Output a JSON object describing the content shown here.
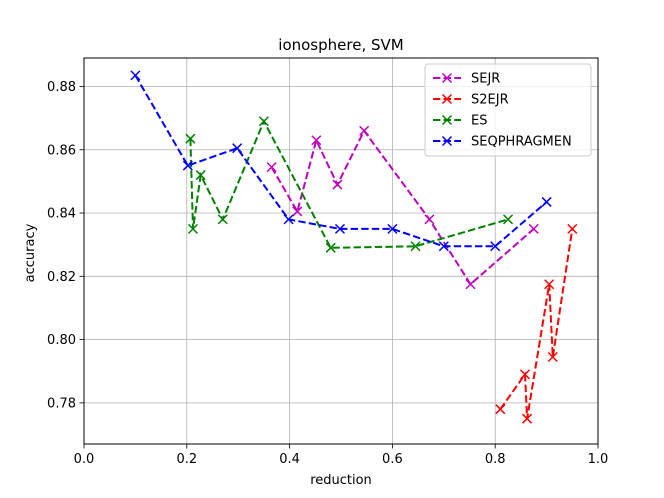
{
  "chart_data": {
    "type": "line",
    "title": "ionosphere, SVM",
    "xlabel": "reduction",
    "ylabel": "accuracy",
    "xlim": [
      0.0,
      1.0
    ],
    "ylim": [
      0.767,
      0.889
    ],
    "xticks": [
      0.0,
      0.2,
      0.4,
      0.6,
      0.8,
      1.0
    ],
    "xtick_labels": [
      "0.0",
      "0.2",
      "0.4",
      "0.6",
      "0.8",
      "1.0"
    ],
    "yticks": [
      0.78,
      0.8,
      0.82,
      0.84,
      0.86,
      0.88
    ],
    "ytick_labels": [
      "0.78",
      "0.80",
      "0.82",
      "0.84",
      "0.86",
      "0.88"
    ],
    "grid": true,
    "legend_position": "top-right",
    "series": [
      {
        "name": "SEJR",
        "color": "#bf00bf",
        "marker": "x",
        "linestyle": "dashed",
        "x": [
          0.365,
          0.415,
          0.452,
          0.493,
          0.545,
          0.672,
          0.752,
          0.875
        ],
        "y": [
          0.8545,
          0.8405,
          0.863,
          0.849,
          0.866,
          0.838,
          0.8175,
          0.835
        ]
      },
      {
        "name": "S2EJR",
        "color": "#ff0000",
        "marker": "x",
        "linestyle": "dashed",
        "x": [
          0.81,
          0.858,
          0.862,
          0.905,
          0.912,
          0.95
        ],
        "y": [
          0.778,
          0.789,
          0.775,
          0.8175,
          0.7945,
          0.835
        ]
      },
      {
        "name": "ES",
        "color": "#008000",
        "marker": "x",
        "linestyle": "dashed",
        "x": [
          0.207,
          0.212,
          0.227,
          0.27,
          0.35,
          0.48,
          0.645,
          0.825
        ],
        "y": [
          0.8635,
          0.835,
          0.852,
          0.838,
          0.869,
          0.829,
          0.8295,
          0.838
        ]
      },
      {
        "name": "SEQPHRAGMEN",
        "color": "#0000ff",
        "marker": "x",
        "linestyle": "dashed",
        "x": [
          0.1,
          0.202,
          0.298,
          0.398,
          0.498,
          0.6,
          0.7,
          0.8,
          0.9
        ],
        "y": [
          0.8835,
          0.855,
          0.8605,
          0.838,
          0.835,
          0.835,
          0.8295,
          0.8295,
          0.8435
        ]
      }
    ]
  }
}
